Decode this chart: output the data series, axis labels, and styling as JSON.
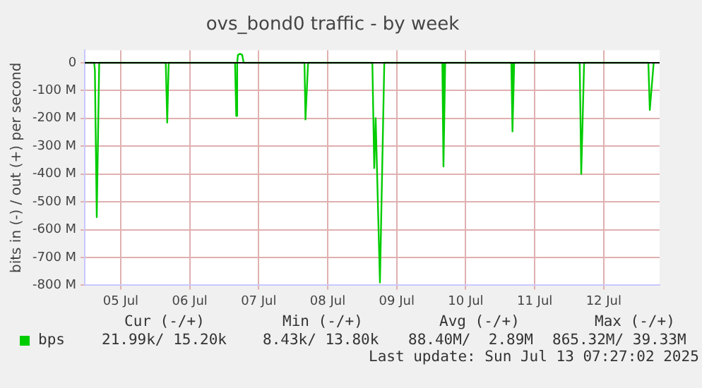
{
  "chart_data": {
    "type": "line",
    "title": "ovs_bond0 traffic - by week",
    "ylabel": "bits in (-) / out (+) per second",
    "x": [
      "2025-07-04T23:31",
      "2025-07-05T02:46",
      "2025-07-05T03:01",
      "2025-07-05T03:40",
      "2025-07-05T04:31",
      "2025-07-06T03:40",
      "2025-07-06T04:11",
      "2025-07-06T04:41",
      "2025-07-07T03:46",
      "2025-07-07T04:11",
      "2025-07-07T04:31",
      "2025-07-07T04:47",
      "2025-07-07T05:31",
      "2025-07-07T06:16",
      "2025-07-07T06:46",
      "2025-07-08T03:55",
      "2025-07-08T04:16",
      "2025-07-08T05:10",
      "2025-07-09T03:32",
      "2025-07-09T04:11",
      "2025-07-09T04:41",
      "2025-07-09T06:10",
      "2025-07-09T07:41",
      "2025-07-10T03:52",
      "2025-07-10T04:16",
      "2025-07-10T04:52",
      "2025-07-11T03:52",
      "2025-07-11T04:16",
      "2025-07-11T04:52",
      "2025-07-12T03:32",
      "2025-07-12T03:40",
      "2025-07-12T04:11",
      "2025-07-12T05:11",
      "2025-07-13T03:32",
      "2025-07-13T04:02",
      "2025-07-13T05:23"
    ],
    "series": [
      {
        "name": "bps",
        "color": "#00cc00",
        "values": [
          0,
          0,
          -25,
          -555,
          0,
          0,
          -215,
          0,
          0,
          -191,
          0,
          28,
          32,
          28,
          0,
          0,
          -204,
          0,
          0,
          -379,
          -199,
          -790,
          0,
          0,
          -373,
          0,
          0,
          -247,
          0,
          0,
          -10,
          -400,
          0,
          0,
          -170,
          0
        ]
      }
    ],
    "xlim": [
      "2025-07-04T23:31",
      "2025-07-13T07:27"
    ],
    "xticks": [
      {
        "value": "2025-07-05T12:00",
        "label": "05 Jul"
      },
      {
        "value": "2025-07-06T12:00",
        "label": "06 Jul"
      },
      {
        "value": "2025-07-07T12:00",
        "label": "07 Jul"
      },
      {
        "value": "2025-07-08T12:00",
        "label": "08 Jul"
      },
      {
        "value": "2025-07-09T12:00",
        "label": "09 Jul"
      },
      {
        "value": "2025-07-10T12:00",
        "label": "10 Jul"
      },
      {
        "value": "2025-07-11T12:00",
        "label": "11 Jul"
      },
      {
        "value": "2025-07-12T12:00",
        "label": "12 Jul"
      }
    ],
    "ylim": [
      -800,
      45
    ],
    "yticks": [
      {
        "value": 0,
        "label": "0"
      },
      {
        "value": -100,
        "label": "-100 M"
      },
      {
        "value": -200,
        "label": "-200 M"
      },
      {
        "value": -300,
        "label": "-300 M"
      },
      {
        "value": -400,
        "label": "-400 M"
      },
      {
        "value": -500,
        "label": "-500 M"
      },
      {
        "value": -600,
        "label": "-600 M"
      },
      {
        "value": -700,
        "label": "-700 M"
      },
      {
        "value": -800,
        "label": "-800 M"
      }
    ],
    "grid": true,
    "legend": "bottom left",
    "marker": "none",
    "line_style": "solid",
    "annotations": [
      "Cur (-/+)",
      "Min (-/+)",
      "Avg (-/+)",
      "Max (-/+)",
      "21.99k/ 15.20k",
      "8.43k/ 13.80k",
      "88.40M/  2.89M",
      "865.32M/ 39.33M",
      "Last update: Sun Jul 13 07:27:02 2025"
    ]
  }
}
